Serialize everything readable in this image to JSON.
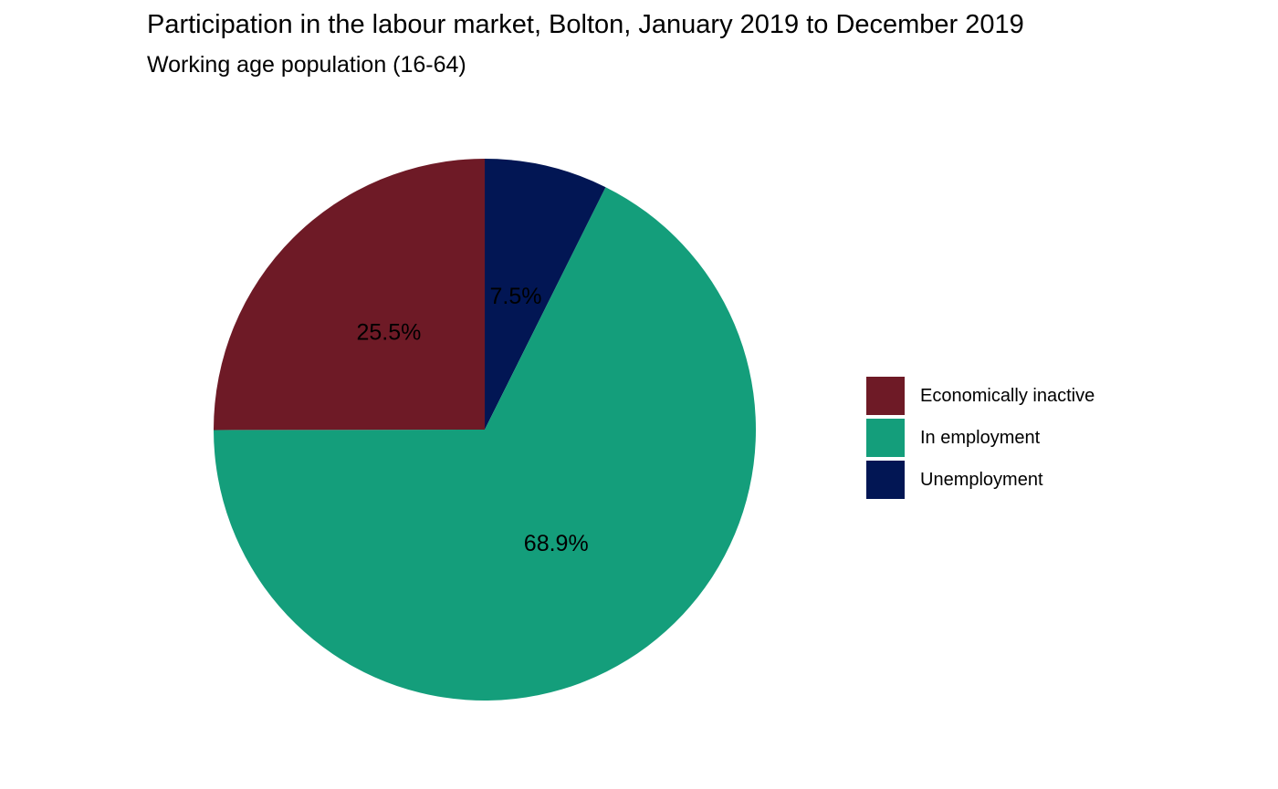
{
  "chart_data": {
    "type": "pie",
    "title": "Participation in the labour market, Bolton, January 2019 to December 2019",
    "subtitle": "Working age population (16-64)",
    "legend_position": "right",
    "slices": [
      {
        "name": "Economically inactive",
        "value": 25.5,
        "label": "25.5%",
        "color": "#6E1A26"
      },
      {
        "name": "In employment",
        "value": 68.9,
        "label": "68.9%",
        "color": "#149E7B"
      },
      {
        "name": "Unemployment",
        "value": 7.5,
        "label": "7.5%",
        "color": "#021654"
      }
    ]
  }
}
